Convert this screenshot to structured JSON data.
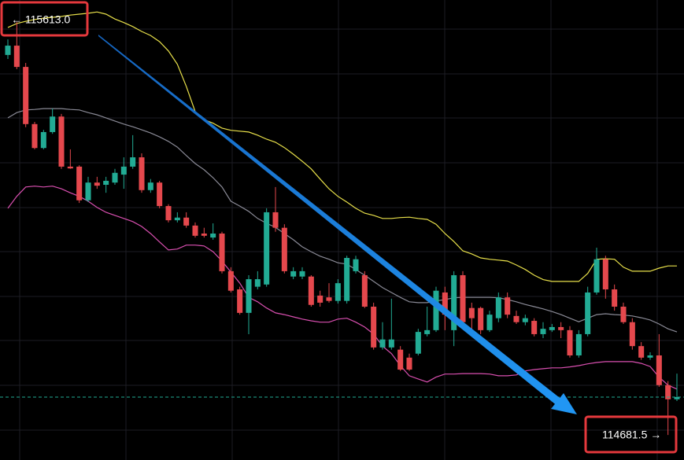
{
  "chart_data": {
    "type": "candlestick",
    "ylim": [
      114625,
      115663
    ],
    "up_color": "#22ab94",
    "down_color": "#e5484d",
    "price_line": true,
    "open": [
      115539,
      115560,
      115512,
      115383,
      115329,
      115365,
      115400,
      115287,
      115287,
      115211,
      115251,
      115246,
      115251,
      115269,
      115287,
      115308,
      115234,
      115251,
      115198,
      115166,
      115172,
      115154,
      115136,
      115127,
      115136,
      115051,
      115010,
      114957,
      115016,
      115021,
      115184,
      115149,
      115039,
      115039,
      115039,
      114996,
      114992,
      114984,
      114984,
      115051,
      115042,
      114971,
      114879,
      114879,
      114874,
      114856,
      114865,
      114909,
      114918,
      115003,
      114918,
      115042,
      114968,
      114968,
      114918,
      114945,
      114992,
      114950,
      114936,
      114939,
      114909,
      114918,
      114925,
      114918,
      114861,
      114909,
      115003,
      115078,
      115010,
      114971,
      114936,
      114882,
      114856,
      114861,
      114794,
      114762
    ],
    "high": [
      115574,
      115613,
      115521,
      115388,
      115370,
      115418,
      115406,
      115326,
      115290,
      115264,
      115264,
      115264,
      115282,
      115308,
      115358,
      115317,
      115259,
      115255,
      115202,
      115184,
      115184,
      115161,
      115149,
      115159,
      115140,
      115060,
      115016,
      115042,
      115051,
      115193,
      115241,
      115157,
      115060,
      115060,
      115042,
      115007,
      115024,
      115033,
      115086,
      115086,
      115051,
      114980,
      114936,
      114989,
      114882,
      114865,
      114921,
      114971,
      115016,
      115016,
      115051,
      115051,
      114980,
      114971,
      114962,
      115003,
      115003,
      114962,
      114953,
      114945,
      114936,
      114932,
      114936,
      114927,
      114918,
      115016,
      115104,
      115086,
      115021,
      114980,
      114945,
      114891,
      114868,
      114909,
      114803,
      114820
    ],
    "low": [
      115530,
      115507,
      115376,
      115326,
      115326,
      115361,
      115282,
      115282,
      115205,
      115207,
      115237,
      115228,
      115246,
      115237,
      115282,
      115228,
      115228,
      115193,
      115161,
      115161,
      115149,
      115127,
      115127,
      115122,
      115046,
      115003,
      114953,
      114909,
      115010,
      115016,
      115140,
      115046,
      115033,
      115033,
      114971,
      114971,
      114980,
      114978,
      114978,
      115046,
      114968,
      114874,
      114874,
      114874,
      114826,
      114826,
      114861,
      114904,
      114914,
      114918,
      114882,
      114927,
      114918,
      114909,
      114914,
      114936,
      114945,
      114932,
      114929,
      114904,
      114900,
      114914,
      114900,
      114856,
      114856,
      114904,
      114998,
      114989,
      114962,
      114932,
      114874,
      114851,
      114851,
      114790,
      114681.5,
      114758
    ],
    "close": [
      115560,
      115512,
      115383,
      115329,
      115365,
      115400,
      115287,
      115283,
      115211,
      115251,
      115244,
      115255,
      115273,
      115287,
      115308,
      115234,
      115251,
      115198,
      115166,
      115172,
      115154,
      115131,
      115131,
      115136,
      115051,
      115007,
      114957,
      115033,
      115033,
      115184,
      115149,
      115051,
      115051,
      115051,
      114975,
      114980,
      114984,
      115024,
      115081,
      115078,
      114971,
      114879,
      114897,
      114897,
      114829,
      114829,
      114914,
      114918,
      115007,
      114953,
      115042,
      114936,
      114945,
      114918,
      114953,
      114992,
      114953,
      114936,
      114945,
      114909,
      114921,
      114925,
      114918,
      114861,
      114909,
      115003,
      115078,
      115010,
      114971,
      114936,
      114882,
      114856,
      114861,
      114794,
      114762,
      114767
    ],
    "series": [
      {
        "color": "#e8e04a",
        "values": [
          115601,
          115610,
          115615,
          115619,
          115622,
          115624,
          115626,
          115629,
          115631,
          115633,
          115636,
          115631,
          115620,
          115612,
          115603,
          115592,
          115583,
          115569,
          115548,
          115518,
          115468,
          115411,
          115393,
          115385,
          115374,
          115369,
          115367,
          115365,
          115358,
          115349,
          115342,
          115330,
          115315,
          115299,
          115282,
          115259,
          115237,
          115220,
          115207,
          115193,
          115182,
          115177,
          115170,
          115170,
          115172,
          115173,
          115170,
          115168,
          115157,
          115136,
          115118,
          115097,
          115090,
          115081,
          115078,
          115076,
          115074,
          115065,
          115055,
          115042,
          115032,
          115028,
          115028,
          115028,
          115028,
          115046,
          115078,
          115079,
          115078,
          115060,
          115051,
          115051,
          115051,
          115058,
          115063,
          115063
        ]
      },
      {
        "color": "#8a8a96",
        "values": [
          115397,
          115409,
          115415,
          115416,
          115418,
          115418,
          115418,
          115416,
          115415,
          115409,
          115404,
          115397,
          115390,
          115383,
          115377,
          115370,
          115363,
          115354,
          115344,
          115331,
          115312,
          115294,
          115280,
          115262,
          115241,
          115209,
          115198,
          115186,
          115170,
          115159,
          115150,
          115136,
          115122,
          115106,
          115095,
          115085,
          115078,
          115070,
          115067,
          115055,
          115042,
          115028,
          115014,
          115003,
          114992,
          114982,
          114980,
          114980,
          114984,
          114987,
          114991,
          114992,
          114992,
          114992,
          114992,
          114991,
          114987,
          114982,
          114976,
          114971,
          114966,
          114960,
          114953,
          114945,
          114937,
          114945,
          114953,
          114955,
          114953,
          114952,
          114950,
          114946,
          114941,
          114932,
          114921,
          114914
        ]
      },
      {
        "color": "#d94fb0",
        "values": [
          115193,
          115220,
          115241,
          115243,
          115241,
          115243,
          115237,
          115228,
          115220,
          115209,
          115195,
          115184,
          115177,
          115170,
          115163,
          115152,
          115136,
          115117,
          115099,
          115101,
          115110,
          115110,
          115108,
          115095,
          115074,
          115049,
          115024,
          114992,
          114982,
          114968,
          114957,
          114953,
          114948,
          114943,
          114939,
          114936,
          114936,
          114943,
          114945,
          114936,
          114925,
          114909,
          114882,
          114865,
          114838,
          114815,
          114808,
          114801,
          114812,
          114819,
          114819,
          114820,
          114820,
          114820,
          114819,
          114815,
          114815,
          114817,
          114826,
          114829,
          114831,
          114833,
          114833,
          114835,
          114838,
          114842,
          114845,
          114847,
          114847,
          114847,
          114847,
          114843,
          114836,
          114812,
          114794,
          114785
        ]
      }
    ],
    "annotations": [
      {
        "text": "← 115613.0"
      },
      {
        "text": "114681.5 →"
      }
    ]
  }
}
